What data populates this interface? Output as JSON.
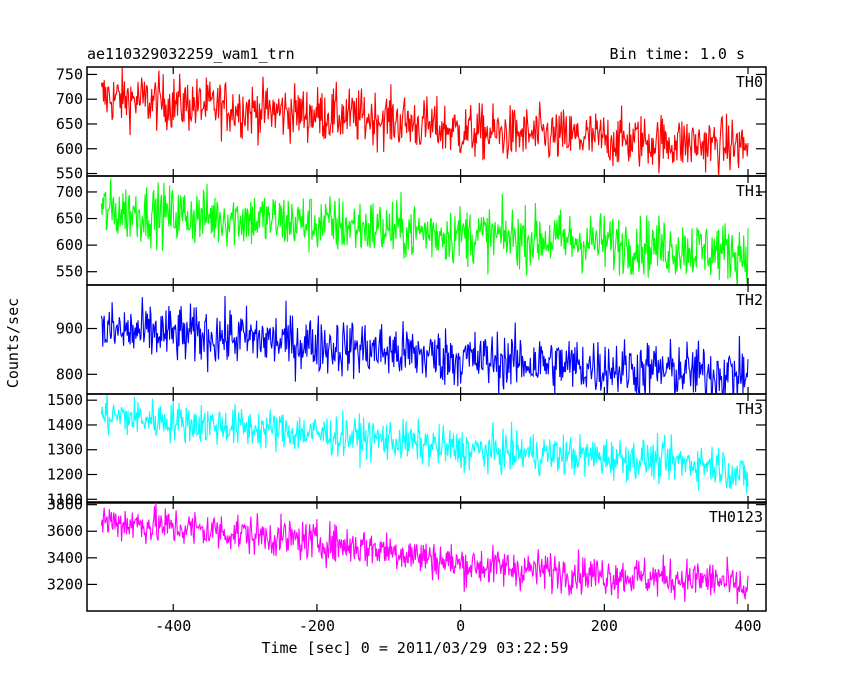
{
  "chart_data": {
    "type": "line",
    "title": "ae110329032259_wam1_trn",
    "subtitle": "Bin time: 1.0 s",
    "xlabel": "Time [sec] 0 = 2011/03/29 03:22:59",
    "ylabel": "Counts/sec",
    "xlim": [
      -520,
      425
    ],
    "xticks": [
      -400,
      -200,
      0,
      200,
      400
    ],
    "x_range": [
      -500,
      400
    ],
    "grid": false,
    "panels": [
      {
        "name": "TH0",
        "color": "#ff0000",
        "ylim": [
          545,
          765
        ],
        "yticks": [
          550,
          600,
          650,
          700,
          750
        ],
        "trend": [
          [
            -500,
            705
          ],
          [
            -300,
            680
          ],
          [
            -100,
            660
          ],
          [
            0,
            635
          ],
          [
            200,
            620
          ],
          [
            400,
            605
          ]
        ],
        "noise": 28
      },
      {
        "name": "TH1",
        "color": "#00ff00",
        "ylim": [
          525,
          730
        ],
        "yticks": [
          550,
          600,
          650,
          700
        ],
        "trend": [
          [
            -500,
            665
          ],
          [
            -300,
            650
          ],
          [
            -100,
            630
          ],
          [
            0,
            620
          ],
          [
            200,
            605
          ],
          [
            400,
            585
          ]
        ],
        "noise": 28
      },
      {
        "name": "TH2",
        "color": "#0000ff",
        "ylim": [
          757,
          995
        ],
        "yticks": [
          800,
          900
        ],
        "trend": [
          [
            -500,
            895
          ],
          [
            -300,
            880
          ],
          [
            -100,
            850
          ],
          [
            0,
            835
          ],
          [
            200,
            815
          ],
          [
            400,
            800
          ]
        ],
        "noise": 32
      },
      {
        "name": "TH3",
        "color": "#00ffff",
        "ylim": [
          1085,
          1525
        ],
        "yticks": [
          1100,
          1200,
          1300,
          1400,
          1500
        ],
        "trend": [
          [
            -500,
            1440
          ],
          [
            -300,
            1390
          ],
          [
            -100,
            1340
          ],
          [
            0,
            1300
          ],
          [
            200,
            1270
          ],
          [
            360,
            1240
          ],
          [
            400,
            1180
          ]
        ],
        "noise": 42
      },
      {
        "name": "TH0123",
        "color": "#ff00ff",
        "ylim": [
          3000,
          3820
        ],
        "yticks": [
          3200,
          3400,
          3600,
          3800
        ],
        "trend": [
          [
            -500,
            3680
          ],
          [
            -300,
            3580
          ],
          [
            -100,
            3460
          ],
          [
            0,
            3350
          ],
          [
            200,
            3270
          ],
          [
            360,
            3230
          ],
          [
            400,
            3150
          ]
        ],
        "noise": 75
      }
    ]
  }
}
